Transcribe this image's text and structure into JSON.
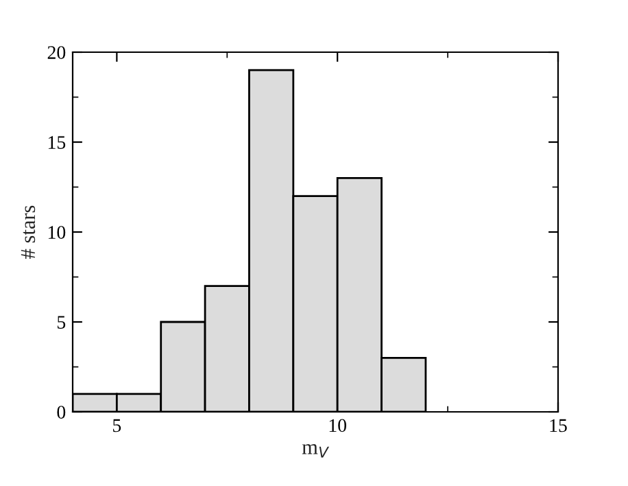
{
  "chart_data": {
    "type": "histogram",
    "xlabel": "m$_{V}$",
    "ylabel": "# stars",
    "bins": [
      4,
      5,
      6,
      7,
      8,
      9,
      10,
      11,
      12
    ],
    "values": [
      1,
      1,
      5,
      7,
      19,
      12,
      13,
      3
    ],
    "color": "#dcdcdc",
    "xlim": [
      4,
      15
    ],
    "xticks": [
      5,
      10,
      15
    ],
    "ylim": [
      0,
      20
    ],
    "yticks": [
      0,
      5,
      10,
      15,
      20
    ],
    "grid": false,
    "legend": false
  }
}
